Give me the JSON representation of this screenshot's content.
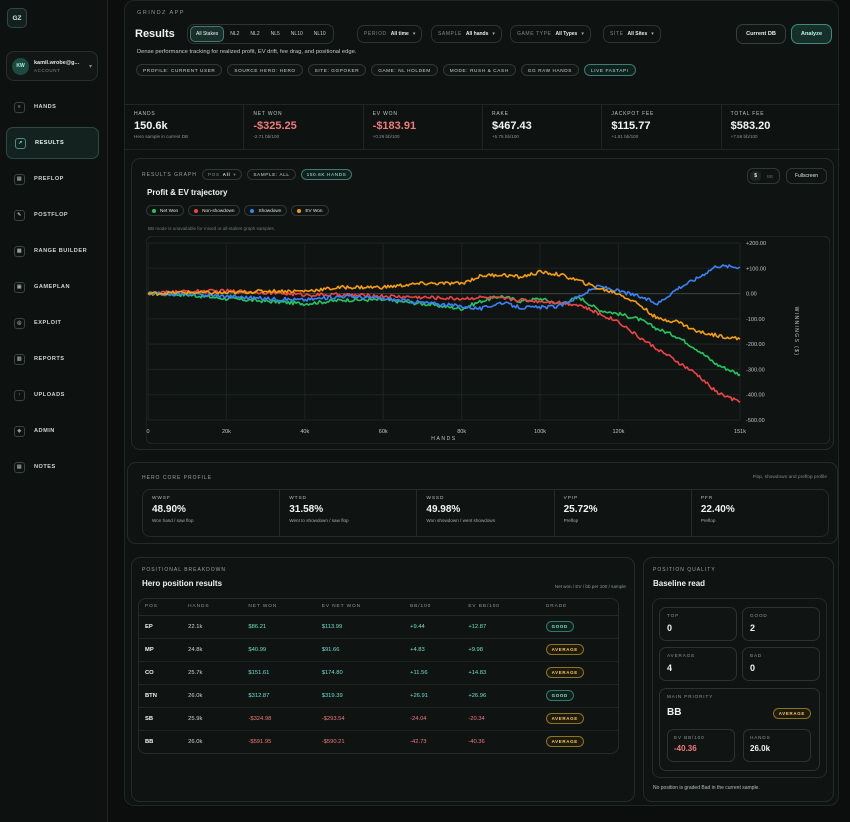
{
  "sidebar": {
    "logo": "GZ",
    "user": {
      "initials": "KW",
      "name": "kamil.wrobe@g...",
      "role": "ACCOUNT"
    },
    "items": [
      {
        "label": "HANDS",
        "icon": "hands-icon"
      },
      {
        "label": "RESULTS",
        "icon": "chart-icon"
      },
      {
        "label": "PREFLOP",
        "icon": "preflop-icon"
      },
      {
        "label": "POSTFLOP",
        "icon": "postflop-icon"
      },
      {
        "label": "RANGE BUILDER",
        "icon": "grid-icon"
      },
      {
        "label": "GAMEPLAN",
        "icon": "gameplan-icon"
      },
      {
        "label": "EXPLOIT",
        "icon": "target-icon"
      },
      {
        "label": "REPORTS",
        "icon": "report-icon"
      },
      {
        "label": "UPLOADS",
        "icon": "upload-icon"
      },
      {
        "label": "ADMIN",
        "icon": "shield-icon"
      },
      {
        "label": "NOTES",
        "icon": "notes-icon"
      }
    ],
    "active_index": 1
  },
  "header": {
    "app_tag": "GRINDZ APP",
    "title": "Results",
    "stakes": [
      "All Stakes",
      "NL2",
      "NL2",
      "NL5",
      "NL10",
      "NL10"
    ],
    "filters": [
      {
        "label": "PERIOD",
        "value": "All time"
      },
      {
        "label": "SAMPLE",
        "value": "All hands"
      },
      {
        "label": "GAME TYPE",
        "value": "All Types"
      },
      {
        "label": "SITE",
        "value": "All Sites"
      }
    ],
    "current_db": "Current DB",
    "analyze": "Analyze",
    "subtitle": "Dense performance tracking for realized profit, EV drift, fee drag, and positional edge.",
    "chips": [
      "PROFILE: CURRENT USER",
      "SOURCE HERO: HERO",
      "SITE: GGPOKER",
      "GAME: NL HOLDEM",
      "MODE: RUSH & CASH",
      "GG RAW HANDS"
    ],
    "live_chip": "LIVE FASTAPI"
  },
  "stats": [
    {
      "label": "HANDS",
      "value": "150.6k",
      "sub": "Hero sample in current DB",
      "neg": false
    },
    {
      "label": "NET WON",
      "value": "-$325.25",
      "sub": "-2.71 bb/100",
      "neg": true
    },
    {
      "label": "EV WON",
      "value": "-$183.91",
      "sub": "+0.26 bb/100",
      "neg": true
    },
    {
      "label": "RAKE",
      "value": "$467.43",
      "sub": "+5.75 bb/100",
      "neg": false
    },
    {
      "label": "JACKPOT FEE",
      "value": "$115.77",
      "sub": "+1.81 bb/100",
      "neg": false
    },
    {
      "label": "TOTAL FEE",
      "value": "$583.20",
      "sub": "+7.56 bb/100",
      "neg": false
    }
  ],
  "graph": {
    "label": "RESULTS GRAPH",
    "pos_label": "POS",
    "pos_value": "All",
    "sample_chip": "SAMPLE: ALL",
    "hands_chip": "150.6K HANDS",
    "unit_dollar": "$",
    "unit_bb": "BB",
    "fullscreen": "Fullscreen",
    "title": "Profit & EV trajectory",
    "note": "BB mode is unavailable for mixed or all-stakes graph samples."
  },
  "chart_data": {
    "type": "line",
    "xlabel": "HANDS",
    "ylabel": "WINNINGS ($)",
    "x_ticks": [
      "0",
      "20k",
      "40k",
      "60k",
      "80k",
      "100k",
      "120k",
      "151k"
    ],
    "y_ticks": [
      "+200.00",
      "+100.00",
      "0.00",
      "-100.00",
      "-200.00",
      "-300.00",
      "-400.00",
      "-500.00"
    ],
    "ylim": [
      -500,
      200
    ],
    "xlim": [
      0,
      151
    ],
    "x_units": "thousand hands",
    "legend_position": "top-left",
    "series": [
      {
        "name": "Net Won",
        "color": "#22c55e",
        "x": [
          0,
          10,
          20,
          30,
          40,
          50,
          60,
          70,
          80,
          85,
          90,
          95,
          100,
          105,
          110,
          115,
          120,
          125,
          130,
          135,
          140,
          145,
          151
        ],
        "y": [
          0,
          -5,
          -20,
          -30,
          -40,
          -25,
          -25,
          -40,
          -60,
          -30,
          -10,
          -30,
          -20,
          -40,
          -15,
          -65,
          -80,
          -100,
          -140,
          -170,
          -220,
          -280,
          -320
        ]
      },
      {
        "name": "Non-showdown",
        "color": "#ef4444",
        "x": [
          0,
          10,
          20,
          30,
          40,
          50,
          60,
          70,
          80,
          85,
          90,
          95,
          100,
          105,
          110,
          115,
          120,
          125,
          130,
          135,
          140,
          145,
          151
        ],
        "y": [
          0,
          8,
          10,
          5,
          -5,
          -5,
          -10,
          -15,
          -20,
          -15,
          -20,
          -25,
          -30,
          -35,
          -45,
          -80,
          -110,
          -170,
          -220,
          -270,
          -320,
          -390,
          -430
        ]
      },
      {
        "name": "Showdown",
        "color": "#3b82f6",
        "x": [
          0,
          10,
          20,
          30,
          40,
          50,
          60,
          70,
          80,
          85,
          90,
          95,
          100,
          105,
          110,
          115,
          120,
          125,
          130,
          135,
          140,
          145,
          151
        ],
        "y": [
          0,
          -2,
          -10,
          -20,
          -25,
          -10,
          -20,
          -35,
          -50,
          -60,
          -35,
          -55,
          -55,
          -50,
          -10,
          30,
          10,
          -10,
          -40,
          20,
          60,
          110,
          105
        ]
      },
      {
        "name": "EV Won",
        "color": "#f59e0b",
        "x": [
          0,
          10,
          20,
          30,
          40,
          50,
          60,
          70,
          80,
          85,
          90,
          95,
          100,
          105,
          110,
          115,
          120,
          125,
          130,
          135,
          140,
          145,
          151
        ],
        "y": [
          0,
          5,
          2,
          10,
          10,
          25,
          25,
          40,
          40,
          70,
          75,
          65,
          85,
          75,
          50,
          20,
          0,
          -40,
          -100,
          -110,
          -150,
          -165,
          -180
        ]
      }
    ]
  },
  "profile": {
    "label": "HERO CORE PROFILE",
    "note": "Flop, showdown and preflop profile",
    "cells": [
      {
        "label": "WWSF",
        "value": "48.90%",
        "sub": "Won hand / saw flop"
      },
      {
        "label": "WTSD",
        "value": "31.58%",
        "sub": "Went to showdown / saw flop"
      },
      {
        "label": "WSSD",
        "value": "49.98%",
        "sub": "Won showdown / went showdown"
      },
      {
        "label": "VPIP",
        "value": "25.72%",
        "sub": "Preflop"
      },
      {
        "label": "PFR",
        "value": "22.40%",
        "sub": "Preflop"
      }
    ]
  },
  "positions": {
    "label": "POSITIONAL BREAKDOWN",
    "title": "Hero position results",
    "note": "Net won / EV / bb per 100 / sample",
    "headers": [
      "POS",
      "HANDS",
      "NET WON",
      "EV NET WON",
      "BB/100",
      "EV BB/100",
      "GRADE"
    ],
    "rows": [
      {
        "pos": "EP",
        "hands": "22.1k",
        "net": "$86.21",
        "ev": "$113.99",
        "bb": "+9.44",
        "evbb": "+12.87",
        "grade": "GOOD",
        "neg": false
      },
      {
        "pos": "MP",
        "hands": "24.8k",
        "net": "$40.99",
        "ev": "$91.66",
        "bb": "+4.83",
        "evbb": "+9.98",
        "grade": "AVERAGE",
        "neg": false
      },
      {
        "pos": "CO",
        "hands": "25.7k",
        "net": "$151.61",
        "ev": "$174.80",
        "bb": "+11.56",
        "evbb": "+14.83",
        "grade": "AVERAGE",
        "neg": false
      },
      {
        "pos": "BTN",
        "hands": "26.0k",
        "net": "$312.87",
        "ev": "$319.39",
        "bb": "+26.91",
        "evbb": "+26.96",
        "grade": "GOOD",
        "neg": false
      },
      {
        "pos": "SB",
        "hands": "25.9k",
        "net": "-$324.98",
        "ev": "-$293.54",
        "bb": "-24.04",
        "evbb": "-20.34",
        "grade": "AVERAGE",
        "neg": true
      },
      {
        "pos": "BB",
        "hands": "26.0k",
        "net": "-$591.95",
        "ev": "-$590.21",
        "bb": "-42.73",
        "evbb": "-40.36",
        "grade": "AVERAGE",
        "neg": true
      }
    ]
  },
  "quality": {
    "label": "POSITION QUALITY",
    "title": "Baseline read",
    "top_label": "TOP",
    "top": "0",
    "good_label": "GOOD",
    "good": "2",
    "average_label": "AVERAGE",
    "average": "4",
    "bad_label": "BAD",
    "bad": "0",
    "priority_label": "MAIN PRIORITY",
    "priority_pos": "BB",
    "priority_grade": "AVERAGE",
    "ev_label": "EV BB/100",
    "ev_value": "-40.36",
    "hands_label": "HANDS",
    "hands_value": "26.0k",
    "footer": "No position is graded Bad in the current sample."
  }
}
